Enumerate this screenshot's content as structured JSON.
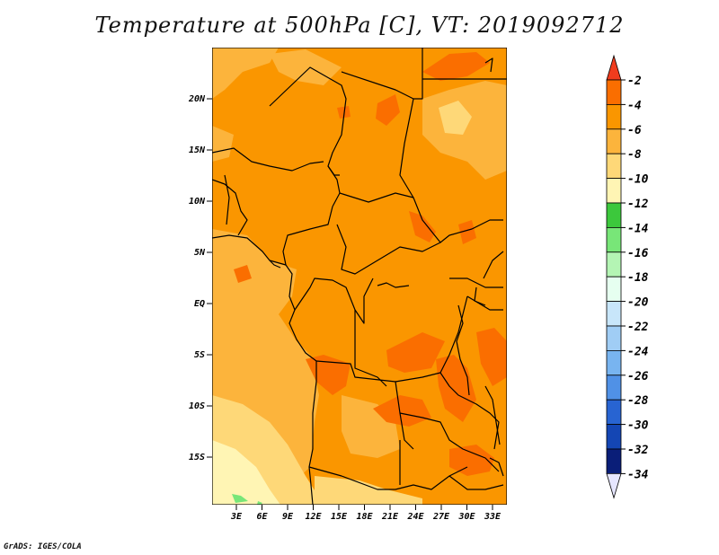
{
  "title": "Temperature at 500hPa [C], VT: 2019092712",
  "credit": "GrADS: IGES/COLA",
  "map": {
    "latitude_labels": [
      "20N",
      "15N",
      "10N",
      "5N",
      "EQ",
      "5S",
      "10S",
      "15S"
    ],
    "longitude_labels": [
      "3E",
      "6E",
      "9E",
      "12E",
      "15E",
      "18E",
      "21E",
      "24E",
      "27E",
      "30E",
      "33E"
    ]
  },
  "colorbar": {
    "labels": [
      "-2",
      "-4",
      "-6",
      "-8",
      "-10",
      "-12",
      "-14",
      "-16",
      "-18",
      "-20",
      "-22",
      "-24",
      "-26",
      "-28",
      "-30",
      "-32",
      "-34"
    ],
    "colors": [
      "#f03c1e",
      "#fa6e00",
      "#fa9600",
      "#fcb43c",
      "#fed878",
      "#fff5b4",
      "#3cc83c",
      "#78e678",
      "#b4f5b4",
      "#e6fff0",
      "#c8e6fa",
      "#a0cdf5",
      "#78b4f0",
      "#5091e6",
      "#2864d2",
      "#1446b4",
      "#0a1e78",
      "#e6e6ff"
    ]
  },
  "palette": {
    "band_-4_-2": "#fa6e00",
    "band_-6_-4": "#fa9600",
    "band_-8_-6": "#fcb43c",
    "band_-10_-8": "#fed878",
    "band_-12_-10": "#fff5b4",
    "band_-14_-12": "#3cc83c"
  }
}
